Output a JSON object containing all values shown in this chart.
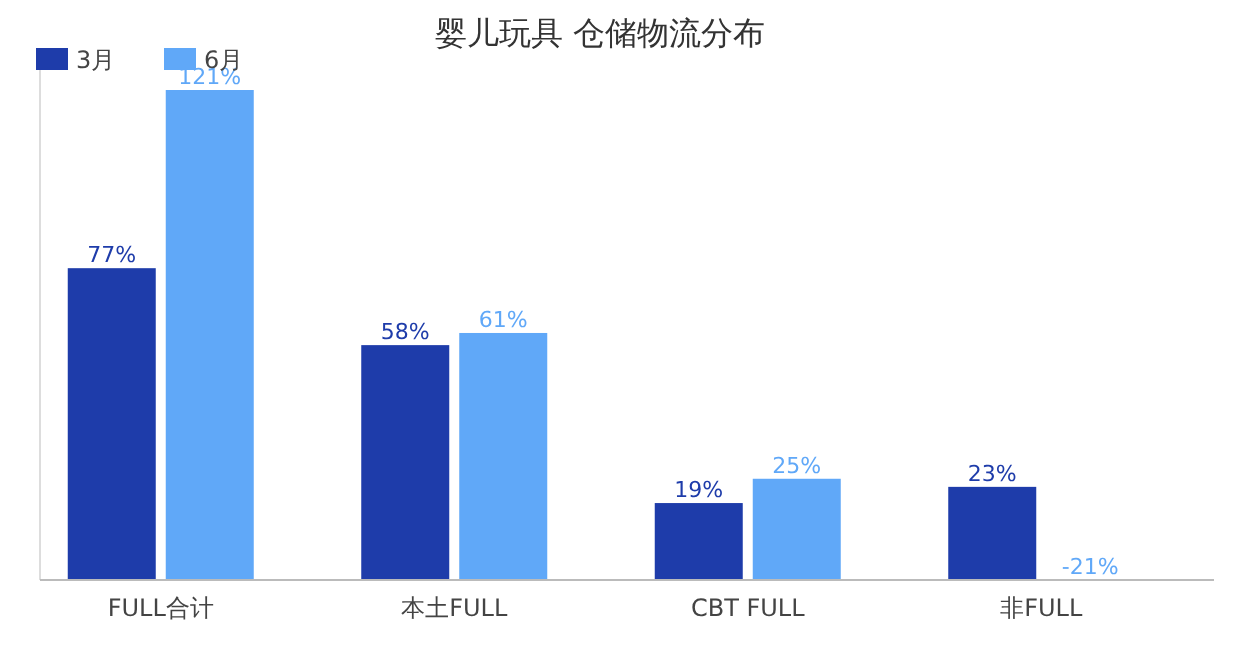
{
  "chart_data": {
    "type": "bar",
    "title": "婴儿玩具 仓储物流分布",
    "categories": [
      "FULL合计",
      "本土FULL",
      "CBT FULL",
      "非FULL"
    ],
    "series": [
      {
        "name": "3月",
        "color": "#1e3caa",
        "values": [
          77,
          58,
          19,
          23
        ],
        "value_labels": [
          "77%",
          "58%",
          "19%",
          "23%"
        ]
      },
      {
        "name": "6月",
        "color": "#60a8f8",
        "values": [
          121,
          61,
          25,
          null
        ],
        "value_labels": [
          "121%",
          "61%",
          "25%",
          "-21%"
        ]
      }
    ],
    "legend": "top left",
    "grid": false
  }
}
